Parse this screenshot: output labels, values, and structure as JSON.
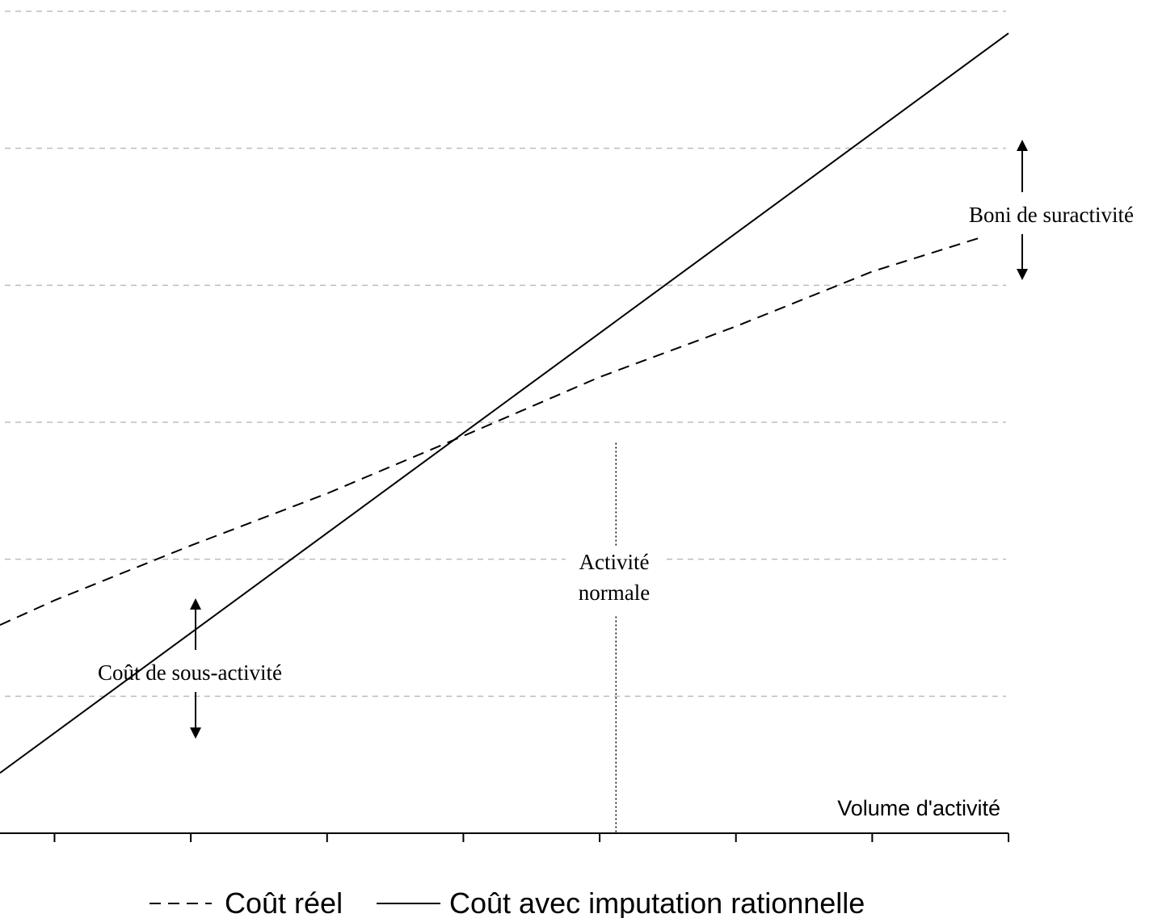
{
  "chart_data": {
    "type": "line",
    "title": "",
    "xlabel": "Volume d'activité",
    "ylabel": "",
    "xlim": [
      0,
      7.4
    ],
    "ylim": [
      0,
      6
    ],
    "grid": {
      "horizontal": true,
      "vertical": false
    },
    "horizontal_gridlines": [
      1,
      2,
      3,
      4,
      5,
      6
    ],
    "x_ticks": [
      0.4,
      1.4,
      2.4,
      3.4,
      4.4,
      5.4,
      6.4,
      7.4
    ],
    "legend": {
      "position": "bottom"
    },
    "series": [
      {
        "name": "Coût réel",
        "style": "dashed",
        "color": "#000000",
        "x": [
          0.0,
          0.4,
          1.4,
          2.4,
          3.4,
          4.4,
          5.4,
          6.4,
          7.2
        ],
        "y": [
          1.52,
          1.7,
          2.1,
          2.48,
          2.9,
          3.33,
          3.7,
          4.1,
          4.35
        ]
      },
      {
        "name": "Coût avec imputation rationnelle",
        "style": "solid",
        "color": "#000000",
        "x": [
          0.0,
          7.4
        ],
        "y": [
          0.44,
          5.84
        ]
      }
    ],
    "reference_lines": [
      {
        "x": 4.52,
        "y_range": [
          0,
          2.85
        ],
        "style": "dotted"
      }
    ],
    "annotations": [
      {
        "text_lines": [
          "Boni de suractivité"
        ],
        "arrow_x": 7.5,
        "arrow_y": [
          4.0,
          5.0
        ]
      },
      {
        "text_lines": [
          "Coût de sous-activité"
        ],
        "arrow_x": 1.43,
        "arrow_y": [
          0.72,
          1.69
        ]
      },
      {
        "text_lines": [
          "Activité",
          "normale"
        ],
        "x": 4.52
      }
    ]
  }
}
